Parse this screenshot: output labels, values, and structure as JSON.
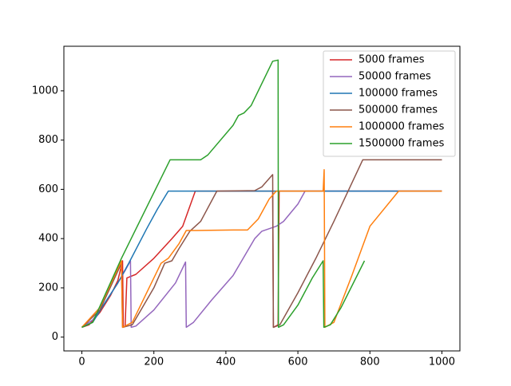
{
  "chart_data": {
    "type": "line",
    "xlim": [
      -50,
      1050
    ],
    "ylim": [
      -56,
      1181
    ],
    "xticks": [
      0,
      200,
      400,
      600,
      800,
      1000
    ],
    "yticks": [
      0,
      200,
      400,
      600,
      800,
      1000
    ],
    "legend": "upper right",
    "series": [
      {
        "name": "5000 frames",
        "color": "#d62728",
        "x": [
          0,
          20,
          50,
          80,
          100,
          113,
          115,
          120,
          125,
          150,
          200,
          250,
          280,
          315,
          530,
          532,
          545,
          548,
          1000
        ],
        "values": [
          40,
          50,
          100,
          170,
          230,
          310,
          40,
          45,
          240,
          255,
          320,
          400,
          450,
          593,
          593,
          40,
          50,
          593,
          593
        ]
      },
      {
        "name": "50000 frames",
        "color": "#9467bd",
        "x": [
          0,
          30,
          60,
          100,
          120,
          135,
          137,
          150,
          200,
          260,
          288,
          290,
          310,
          360,
          420,
          480,
          500,
          520,
          540,
          560,
          600,
          620,
          1000
        ],
        "values": [
          40,
          70,
          130,
          220,
          270,
          310,
          40,
          45,
          110,
          220,
          305,
          40,
          60,
          150,
          250,
          400,
          430,
          440,
          450,
          470,
          540,
          593,
          593
        ]
      },
      {
        "name": "100000 frames",
        "color": "#1f77b4",
        "x": [
          0,
          30,
          60,
          100,
          130,
          180,
          210,
          240,
          1000
        ],
        "values": [
          40,
          60,
          130,
          220,
          300,
          440,
          520,
          593,
          593
        ]
      },
      {
        "name": "500000 frames",
        "color": "#8c564b",
        "x": [
          0,
          50,
          110,
          113,
          140,
          200,
          230,
          250,
          270,
          300,
          330,
          375,
          480,
          500,
          530,
          532,
          550,
          600,
          650,
          700,
          780,
          1000
        ],
        "values": [
          40,
          110,
          300,
          40,
          50,
          200,
          300,
          310,
          360,
          430,
          470,
          593,
          595,
          610,
          660,
          40,
          50,
          180,
          320,
          470,
          720,
          720
        ]
      },
      {
        "name": "1000000 frames",
        "color": "#ff7f0e",
        "x": [
          0,
          50,
          110,
          113,
          140,
          180,
          220,
          240,
          270,
          290,
          320,
          420,
          460,
          490,
          520,
          540,
          670,
          673,
          675,
          700,
          750,
          800,
          880,
          1000
        ],
        "values": [
          40,
          120,
          310,
          40,
          60,
          180,
          300,
          320,
          380,
          433,
          433,
          435,
          435,
          480,
          560,
          593,
          593,
          680,
          40,
          60,
          250,
          450,
          593,
          593
        ]
      },
      {
        "name": "1500000 frames",
        "color": "#2ca02c",
        "x": [
          0,
          30,
          110,
          245,
          330,
          350,
          420,
          435,
          450,
          470,
          520,
          530,
          545,
          546,
          560,
          600,
          640,
          670,
          672,
          690,
          720,
          785
        ],
        "values": [
          40,
          60,
          320,
          720,
          720,
          740,
          860,
          900,
          910,
          940,
          1090,
          1120,
          1125,
          40,
          50,
          130,
          240,
          310,
          40,
          50,
          120,
          310
        ]
      }
    ]
  }
}
